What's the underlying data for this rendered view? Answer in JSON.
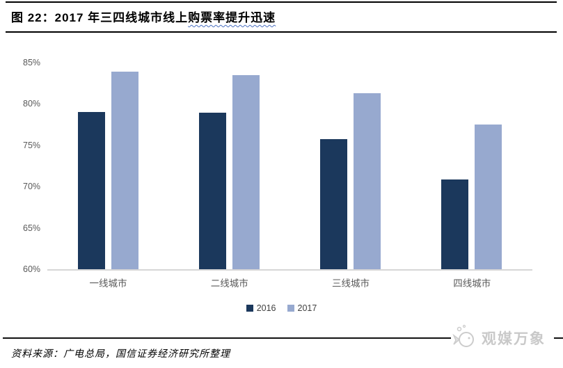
{
  "figure_title": {
    "prefix": "图 22：2017 年三四线城市线上",
    "highlighted": "购票率提升迅速"
  },
  "chart_data": {
    "type": "bar",
    "title": "2017 年三四线城市线上购票率提升迅速",
    "categories": [
      "一线城市",
      "二线城市",
      "三线城市",
      "四线城市"
    ],
    "series": [
      {
        "name": "2016",
        "color": "#1b385c",
        "values": [
          79.0,
          78.9,
          75.7,
          70.9
        ]
      },
      {
        "name": "2017",
        "color": "#97a9cf",
        "values": [
          83.9,
          83.5,
          81.3,
          77.5
        ]
      }
    ],
    "unit": "%",
    "ylim": [
      60,
      85
    ],
    "yticks": [
      {
        "label": "85%",
        "value": 85
      },
      {
        "label": "80%",
        "value": 80
      },
      {
        "label": "75%",
        "value": 75
      },
      {
        "label": "70%",
        "value": 70
      },
      {
        "label": "65%",
        "value": 65
      },
      {
        "label": "60%",
        "value": 60
      }
    ],
    "grid": false,
    "legend_position": "bottom-center",
    "axis_label_color": "#595959",
    "baseline_color": "#d6d6d6"
  },
  "footer": {
    "source": "资料来源：广电总局，国信证券经济研究所整理"
  },
  "watermark": {
    "text": "观媒万象"
  }
}
